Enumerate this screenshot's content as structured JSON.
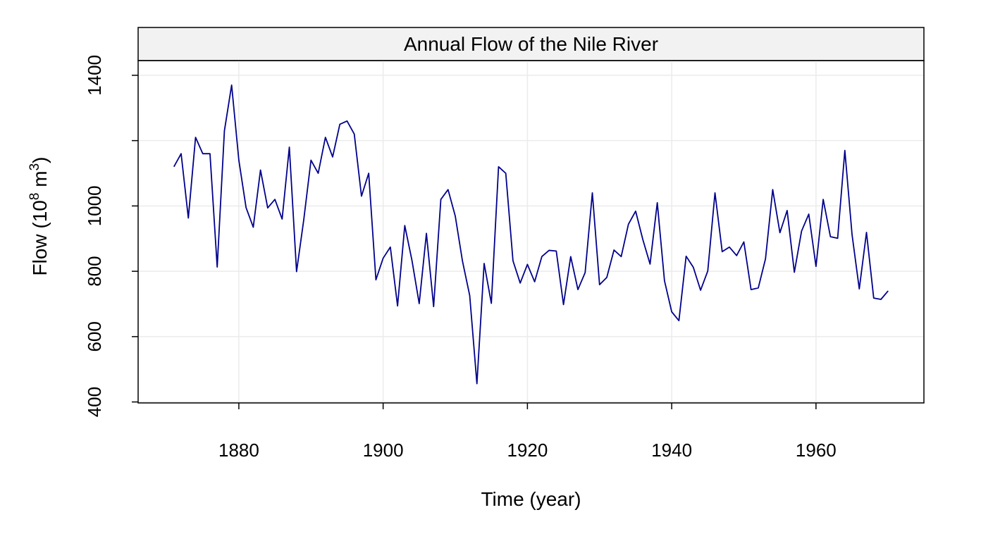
{
  "chart_data": {
    "type": "line",
    "title": "Annual Flow of the Nile River",
    "xlabel": "Time (year)",
    "ylabel": {
      "prefix": "Flow (10",
      "exp1": "8",
      "middle": " m",
      "exp2": "3",
      "suffix": ")"
    },
    "xlim": [
      1866.04,
      1974.96
    ],
    "ylim": [
      397.0,
      1445.0
    ],
    "xticks": [
      1880,
      1900,
      1920,
      1940,
      1960
    ],
    "xtick_labels": [
      "1880",
      "1900",
      "1920",
      "1940",
      "1960"
    ],
    "yticks": [
      400,
      600,
      800,
      1000,
      1200,
      1400
    ],
    "ytick_labels": [
      "400",
      "600",
      "800",
      "1000",
      "",
      "1400"
    ],
    "grid": true,
    "line_color": "#00008B",
    "grid_color": "#EBEBEB",
    "strip_color": "#F2F2F2",
    "series": [
      {
        "x": [
          1871,
          1872,
          1873,
          1874,
          1875,
          1876,
          1877,
          1878,
          1879,
          1880,
          1881,
          1882,
          1883,
          1884,
          1885,
          1886,
          1887,
          1888,
          1889,
          1890,
          1891,
          1892,
          1893,
          1894,
          1895,
          1896,
          1897,
          1898,
          1899,
          1900,
          1901,
          1902,
          1903,
          1904,
          1905,
          1906,
          1907,
          1908,
          1909,
          1910,
          1911,
          1912,
          1913,
          1914,
          1915,
          1916,
          1917,
          1918,
          1919,
          1920,
          1921,
          1922,
          1923,
          1924,
          1925,
          1926,
          1927,
          1928,
          1929,
          1930,
          1931,
          1932,
          1933,
          1934,
          1935,
          1936,
          1937,
          1938,
          1939,
          1940,
          1941,
          1942,
          1943,
          1944,
          1945,
          1946,
          1947,
          1948,
          1949,
          1950,
          1951,
          1952,
          1953,
          1954,
          1955,
          1956,
          1957,
          1958,
          1959,
          1960,
          1961,
          1962,
          1963,
          1964,
          1965,
          1966,
          1967,
          1968,
          1969,
          1970
        ],
        "y": [
          1120,
          1160,
          963,
          1210,
          1160,
          1160,
          813,
          1230,
          1370,
          1140,
          995,
          935,
          1110,
          994,
          1020,
          960,
          1180,
          799,
          958,
          1140,
          1100,
          1210,
          1150,
          1250,
          1260,
          1220,
          1030,
          1100,
          774,
          840,
          874,
          694,
          940,
          833,
          701,
          916,
          692,
          1020,
          1050,
          969,
          831,
          726,
          456,
          824,
          702,
          1120,
          1100,
          832,
          764,
          821,
          768,
          845,
          864,
          862,
          698,
          845,
          744,
          796,
          1040,
          759,
          781,
          865,
          845,
          944,
          984,
          897,
          822,
          1010,
          771,
          676,
          649,
          846,
          812,
          742,
          801,
          1040,
          860,
          874,
          848,
          890,
          744,
          749,
          838,
          1050,
          918,
          986,
          797,
          923,
          975,
          815,
          1020,
          906,
          901,
          1170,
          912,
          746,
          919,
          718,
          714,
          740
        ]
      }
    ]
  }
}
